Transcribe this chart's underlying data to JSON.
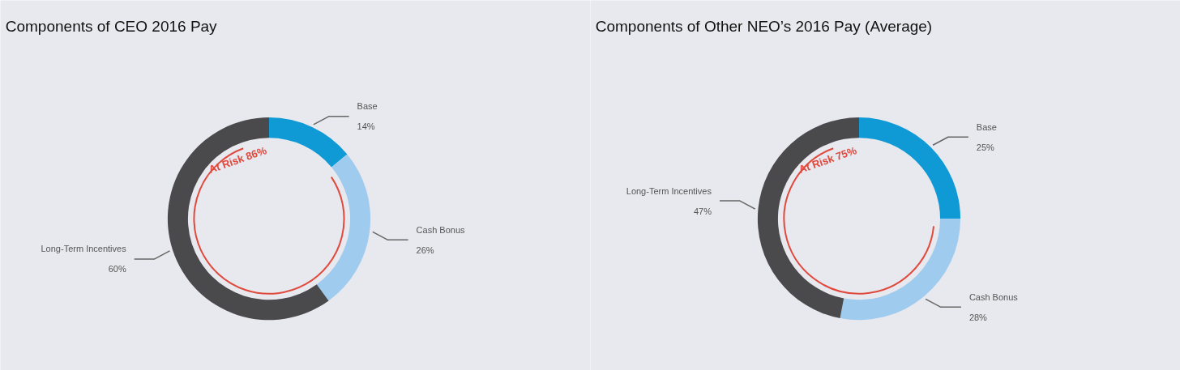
{
  "chart_data": [
    {
      "type": "donut",
      "title": "Components of CEO 2016 Pay",
      "categories": [
        "Base",
        "Cash Bonus",
        "Long-Term Incentives"
      ],
      "values": [
        14,
        26,
        60
      ],
      "colors": [
        "#0f9ad6",
        "#9fcbef",
        "#4a4a4c"
      ],
      "value_labels": [
        "14%",
        "26%",
        "60%"
      ],
      "annotations": [
        "At Risk 86%"
      ]
    },
    {
      "type": "donut",
      "title": "Components of Other NEO’s 2016 Pay (Average)",
      "categories": [
        "Base",
        "Cash Bonus",
        "Long-Term Incentives"
      ],
      "values": [
        25,
        28,
        47
      ],
      "colors": [
        "#0f9ad6",
        "#9fcbef",
        "#4a4a4c"
      ],
      "value_labels": [
        "25%",
        "28%",
        "47%"
      ],
      "annotations": [
        "At Risk 75%"
      ]
    }
  ]
}
